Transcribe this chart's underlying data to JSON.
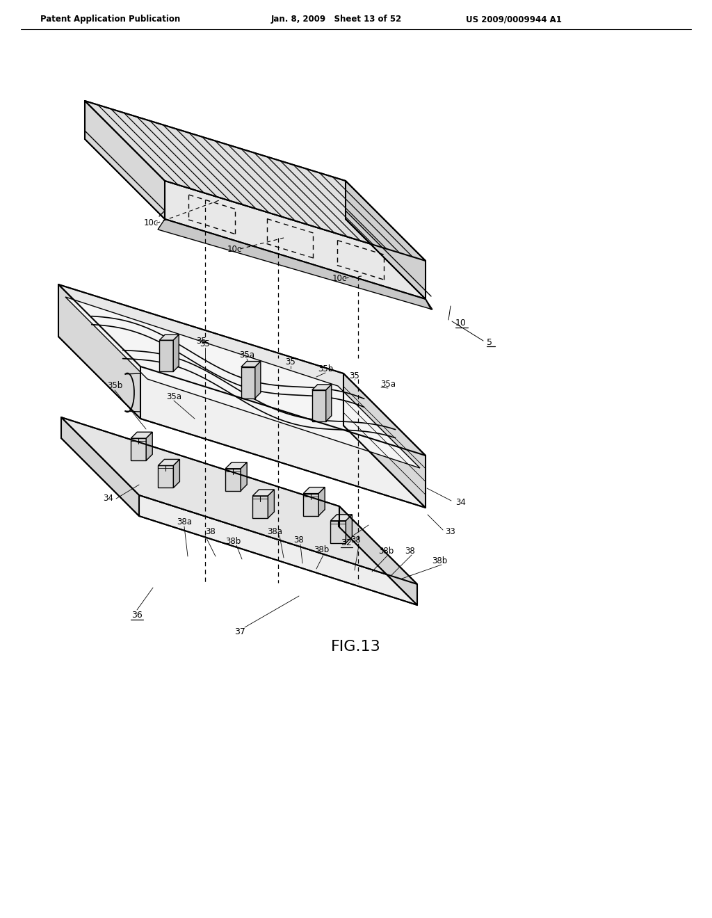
{
  "bg": "#ffffff",
  "lc": "#000000",
  "header_left": "Patent Application Publication",
  "header_mid": "Jan. 8, 2009   Sheet 13 of 52",
  "header_right": "US 2009/0009944 A1",
  "fig_label": "FIG.13"
}
